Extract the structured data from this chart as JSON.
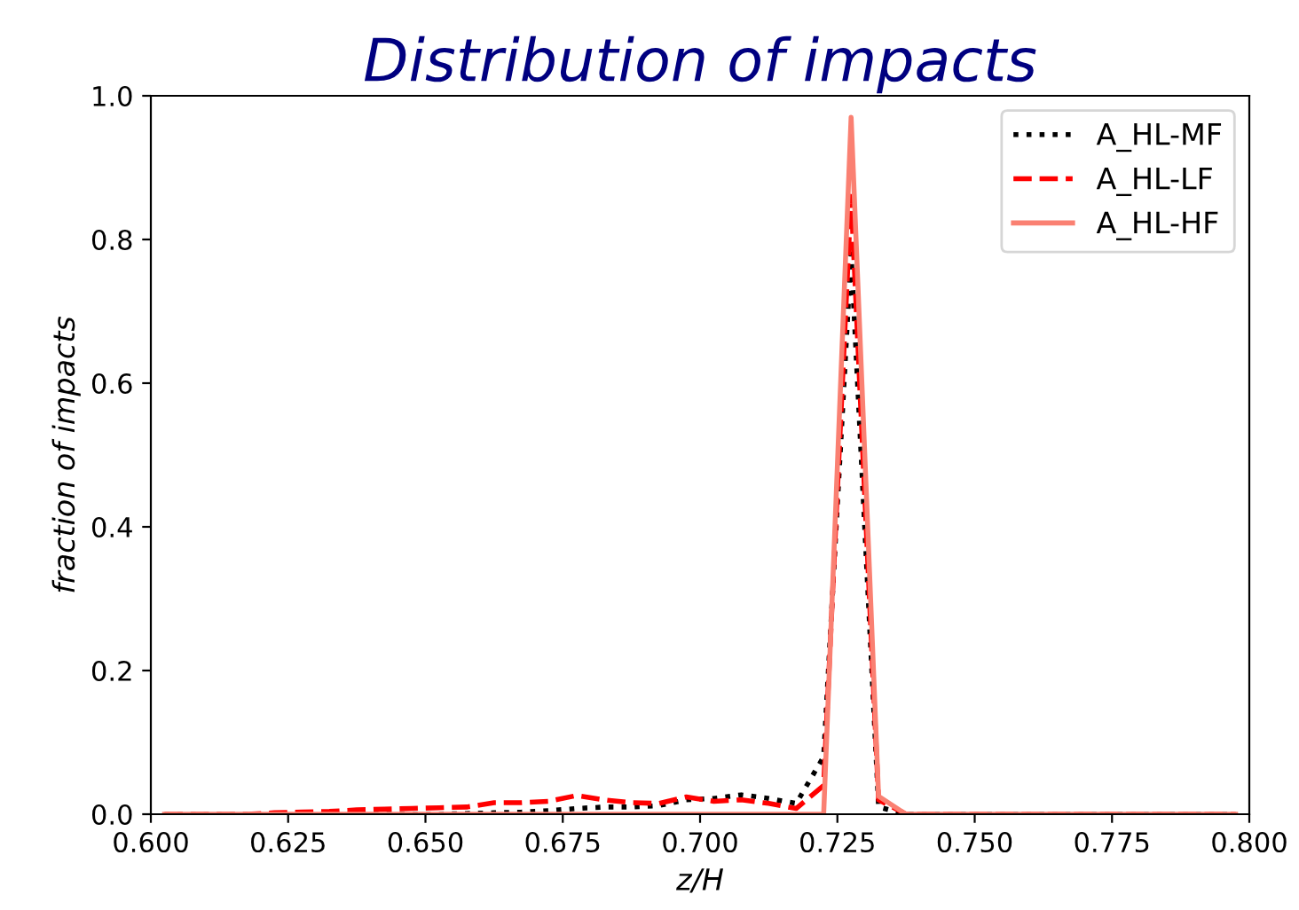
{
  "chart_data": {
    "type": "line",
    "title": "Distribution of impacts",
    "xlabel": "z/H",
    "ylabel": "fraction of impacts",
    "x": [
      0.6025,
      0.6075,
      0.6125,
      0.6175,
      0.6225,
      0.6275,
      0.6325,
      0.6375,
      0.6425,
      0.6475,
      0.6525,
      0.6575,
      0.6625,
      0.6675,
      0.6725,
      0.6775,
      0.6825,
      0.6875,
      0.6925,
      0.6975,
      0.7025,
      0.7075,
      0.7125,
      0.7175,
      0.7225,
      0.7275,
      0.7325,
      0.7375,
      0.7425,
      0.7475,
      0.7525,
      0.7575,
      0.7625,
      0.7675,
      0.7725,
      0.7775,
      0.7825,
      0.7875,
      0.7925,
      0.7975
    ],
    "series": [
      {
        "name": "A_HL-MF",
        "color": "#000000",
        "line_style": "dotted",
        "values": [
          0,
          0,
          0,
          0,
          0,
          0,
          0,
          0,
          0,
          0,
          0,
          0.001,
          0.002,
          0.003,
          0.005,
          0.008,
          0.01,
          0.01,
          0.012,
          0.02,
          0.022,
          0.027,
          0.022,
          0.015,
          0.08,
          0.78,
          0.01,
          0,
          0,
          0,
          0,
          0,
          0,
          0,
          0,
          0,
          0,
          0,
          0,
          0
        ]
      },
      {
        "name": "A_HL-LF",
        "color": "#ff0000",
        "line_style": "dashed",
        "values": [
          0,
          0,
          0,
          0,
          0.002,
          0.003,
          0.004,
          0.006,
          0.007,
          0.008,
          0.009,
          0.01,
          0.016,
          0.016,
          0.018,
          0.026,
          0.02,
          0.016,
          0.015,
          0.024,
          0.018,
          0.02,
          0.015,
          0.008,
          0.04,
          0.86,
          0.02,
          0,
          0,
          0,
          0,
          0,
          0,
          0,
          0,
          0,
          0,
          0,
          0,
          0
        ]
      },
      {
        "name": "A_HL-HF",
        "color": "#fa8072",
        "line_style": "solid",
        "values": [
          0,
          0,
          0,
          0,
          0,
          0,
          0,
          0,
          0,
          0,
          0,
          0,
          0,
          0,
          0,
          0,
          0,
          0,
          0,
          0,
          0,
          0,
          0,
          0,
          0,
          0.97,
          0.025,
          0,
          0,
          0,
          0,
          0,
          0,
          0,
          0,
          0,
          0,
          0,
          0,
          0
        ]
      }
    ],
    "xlim": [
      0.6,
      0.8
    ],
    "xticks": [
      {
        "value": 0.6,
        "label": "0.600"
      },
      {
        "value": 0.625,
        "label": "0.625"
      },
      {
        "value": 0.65,
        "label": "0.650"
      },
      {
        "value": 0.675,
        "label": "0.675"
      },
      {
        "value": 0.7,
        "label": "0.700"
      },
      {
        "value": 0.725,
        "label": "0.725"
      },
      {
        "value": 0.75,
        "label": "0.750"
      },
      {
        "value": 0.775,
        "label": "0.775"
      },
      {
        "value": 0.8,
        "label": "0.800"
      }
    ],
    "ylim": [
      0,
      1
    ],
    "yticks": [
      {
        "value": 0,
        "label": "0.0"
      },
      {
        "value": 0.2,
        "label": "0.2"
      },
      {
        "value": 0.4,
        "label": "0.4"
      },
      {
        "value": 0.6,
        "label": "0.6"
      },
      {
        "value": 0.8,
        "label": "0.8"
      },
      {
        "value": 1,
        "label": "1.0"
      }
    ],
    "legend": "top right",
    "grid": false
  }
}
